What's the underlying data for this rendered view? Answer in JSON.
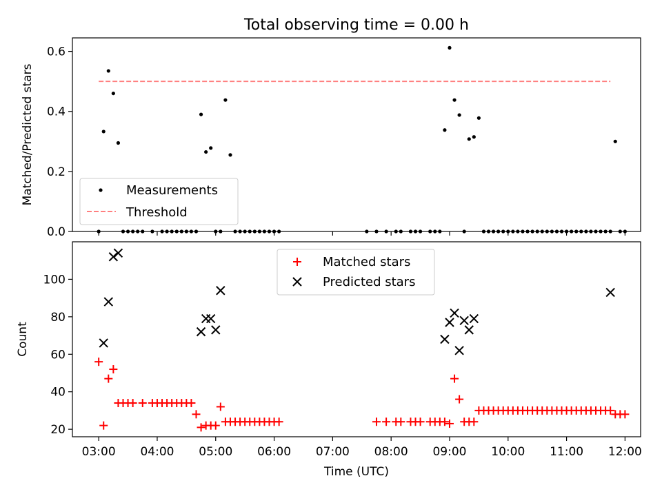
{
  "title": "Total observing time = 0.00 h",
  "colors": {
    "measurement": "#000000",
    "threshold": "#ff7f7f",
    "matched": "#ff0000",
    "predicted": "#000000"
  },
  "chart_data": [
    {
      "type": "scatter",
      "ylabel": "Matched/Predicted stars",
      "xlabel": "",
      "xlim": [
        "02:33",
        "12:16"
      ],
      "ylim": [
        0,
        0.645
      ],
      "yticks": [
        0.0,
        0.2,
        0.4,
        0.6
      ],
      "yticklabels": [
        "0.0",
        "0.2",
        "0.4",
        "0.6"
      ],
      "legend": {
        "position": "lower-left",
        "entries": [
          "Measurements",
          "Threshold"
        ]
      },
      "series": [
        {
          "name": "Measurements",
          "marker": "dot",
          "x": [
            "03:00",
            "03:05",
            "03:10",
            "03:15",
            "03:20",
            "03:25",
            "03:30",
            "03:35",
            "03:40",
            "03:45",
            "03:55",
            "04:05",
            "04:10",
            "04:15",
            "04:20",
            "04:25",
            "04:30",
            "04:35",
            "04:40",
            "04:45",
            "04:50",
            "04:55",
            "05:00",
            "05:05",
            "05:10",
            "05:15",
            "05:20",
            "05:25",
            "05:30",
            "05:35",
            "05:40",
            "05:45",
            "05:50",
            "05:55",
            "06:00",
            "06:05",
            "07:35",
            "07:45",
            "07:55",
            "08:05",
            "08:10",
            "08:20",
            "08:25",
            "08:30",
            "08:40",
            "08:45",
            "08:50",
            "08:55",
            "09:00",
            "09:05",
            "09:10",
            "09:15",
            "09:20",
            "09:25",
            "09:30",
            "09:35",
            "09:40",
            "09:45",
            "09:50",
            "09:55",
            "10:00",
            "10:05",
            "10:10",
            "10:15",
            "10:20",
            "10:25",
            "10:30",
            "10:35",
            "10:40",
            "10:45",
            "10:50",
            "10:55",
            "11:00",
            "11:05",
            "11:10",
            "11:15",
            "11:20",
            "11:25",
            "11:30",
            "11:35",
            "11:40",
            "11:45",
            "11:50",
            "11:55",
            "12:00"
          ],
          "y": [
            0.0,
            0.333,
            0.535,
            0.46,
            0.295,
            0.0,
            0.0,
            0.0,
            0.0,
            0.0,
            0.0,
            0.0,
            0.0,
            0.0,
            0.0,
            0.0,
            0.0,
            0.0,
            0.0,
            0.39,
            0.265,
            0.278,
            0.0,
            0.0,
            0.438,
            0.255,
            0.0,
            0.0,
            0.0,
            0.0,
            0.0,
            0.0,
            0.0,
            0.0,
            0.0,
            0.0,
            0.0,
            0.0,
            0.0,
            0.0,
            0.0,
            0.0,
            0.0,
            0.0,
            0.0,
            0.0,
            0.0,
            0.338,
            0.612,
            0.438,
            0.388,
            0.0,
            0.308,
            0.315,
            0.378,
            0.0,
            0.0,
            0.0,
            0.0,
            0.0,
            0.0,
            0.0,
            0.0,
            0.0,
            0.0,
            0.0,
            0.0,
            0.0,
            0.0,
            0.0,
            0.0,
            0.0,
            0.0,
            0.0,
            0.0,
            0.0,
            0.0,
            0.0,
            0.0,
            0.0,
            0.0,
            0.0,
            0.3,
            0.0,
            0.0
          ]
        },
        {
          "name": "Threshold",
          "style": "dashed",
          "x": [
            "03:00",
            "11:45"
          ],
          "y": [
            0.5,
            0.5
          ]
        }
      ]
    },
    {
      "type": "scatter",
      "ylabel": "Count",
      "xlabel": "Time (UTC)",
      "xlim": [
        "02:33",
        "12:16"
      ],
      "ylim": [
        16,
        120
      ],
      "yticks": [
        20,
        40,
        60,
        80,
        100
      ],
      "yticklabels": [
        "20",
        "40",
        "60",
        "80",
        "100"
      ],
      "xticks": [
        "03:00",
        "04:00",
        "05:00",
        "06:00",
        "07:00",
        "08:00",
        "09:00",
        "10:00",
        "11:00",
        "12:00"
      ],
      "legend": {
        "position": "upper-center",
        "entries": [
          "Matched stars",
          "Predicted stars"
        ]
      },
      "series": [
        {
          "name": "Matched stars",
          "marker": "plus",
          "x": [
            "03:00",
            "03:05",
            "03:10",
            "03:15",
            "03:20",
            "03:25",
            "03:30",
            "03:35",
            "03:45",
            "03:55",
            "04:00",
            "04:05",
            "04:10",
            "04:15",
            "04:20",
            "04:25",
            "04:30",
            "04:35",
            "04:40",
            "04:45",
            "04:50",
            "04:55",
            "05:00",
            "05:05",
            "05:10",
            "05:15",
            "05:20",
            "05:25",
            "05:30",
            "05:35",
            "05:40",
            "05:45",
            "05:50",
            "05:55",
            "06:00",
            "06:05",
            "07:45",
            "07:55",
            "08:05",
            "08:10",
            "08:20",
            "08:25",
            "08:30",
            "08:40",
            "08:45",
            "08:50",
            "08:55",
            "09:00",
            "09:05",
            "09:10",
            "09:15",
            "09:20",
            "09:25",
            "09:30",
            "09:35",
            "09:40",
            "09:45",
            "09:50",
            "09:55",
            "10:00",
            "10:05",
            "10:10",
            "10:15",
            "10:20",
            "10:25",
            "10:30",
            "10:35",
            "10:40",
            "10:45",
            "10:50",
            "10:55",
            "11:00",
            "11:05",
            "11:10",
            "11:15",
            "11:20",
            "11:25",
            "11:30",
            "11:35",
            "11:40",
            "11:45",
            "11:50",
            "11:55",
            "12:00"
          ],
          "y": [
            56,
            22,
            47,
            52,
            34,
            34,
            34,
            34,
            34,
            34,
            34,
            34,
            34,
            34,
            34,
            34,
            34,
            34,
            28,
            21,
            22,
            22,
            22,
            32,
            24,
            24,
            24,
            24,
            24,
            24,
            24,
            24,
            24,
            24,
            24,
            24,
            24,
            24,
            24,
            24,
            24,
            24,
            24,
            24,
            24,
            24,
            24,
            23,
            47,
            36,
            24,
            24,
            24,
            30,
            30,
            30,
            30,
            30,
            30,
            30,
            30,
            30,
            30,
            30,
            30,
            30,
            30,
            30,
            30,
            30,
            30,
            30,
            30,
            30,
            30,
            30,
            30,
            30,
            30,
            30,
            30,
            28,
            28,
            28
          ]
        },
        {
          "name": "Predicted stars",
          "marker": "x",
          "x": [
            "03:05",
            "03:10",
            "03:15",
            "03:20",
            "04:45",
            "04:50",
            "04:55",
            "05:00",
            "05:05",
            "08:55",
            "09:00",
            "09:05",
            "09:10",
            "09:15",
            "09:20",
            "09:25",
            "11:45"
          ],
          "y": [
            66,
            88,
            112,
            114,
            72,
            79,
            79,
            73,
            94,
            68,
            77,
            82,
            62,
            78,
            73,
            79,
            93
          ]
        }
      ]
    }
  ]
}
